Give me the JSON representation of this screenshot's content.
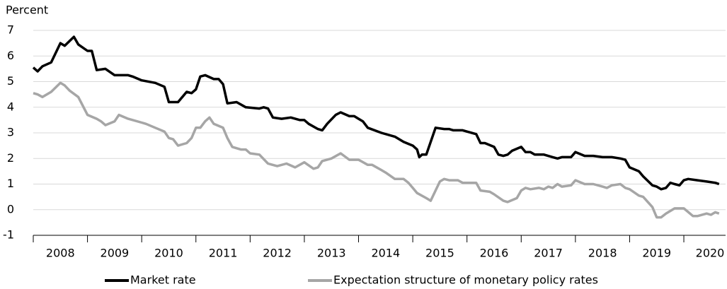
{
  "chart_data": {
    "type": "line",
    "y_label": "Percent",
    "xlim": [
      2008,
      2020.77
    ],
    "ylim": [
      -1,
      7
    ],
    "yticks": [
      -1,
      0,
      1,
      2,
      3,
      4,
      5,
      6,
      7
    ],
    "xticks": [
      2008,
      2009,
      2010,
      2011,
      2012,
      2013,
      2014,
      2015,
      2016,
      2017,
      2018,
      2019,
      2020
    ],
    "grid": true,
    "series": [
      {
        "name": "Market rate",
        "color": "#000000",
        "x": [
          2008.0,
          2008.08,
          2008.17,
          2008.33,
          2008.5,
          2008.58,
          2008.75,
          2008.83,
          2009.0,
          2009.08,
          2009.17,
          2009.33,
          2009.5,
          2009.75,
          2009.83,
          2010.0,
          2010.25,
          2010.42,
          2010.5,
          2010.67,
          2010.83,
          2010.92,
          2011.0,
          2011.08,
          2011.17,
          2011.33,
          2011.42,
          2011.5,
          2011.58,
          2011.75,
          2011.92,
          2012.17,
          2012.25,
          2012.33,
          2012.42,
          2012.58,
          2012.75,
          2012.92,
          2013.0,
          2013.08,
          2013.25,
          2013.33,
          2013.42,
          2013.58,
          2013.67,
          2013.83,
          2013.92,
          2014.0,
          2014.08,
          2014.17,
          2014.42,
          2014.67,
          2014.83,
          2015.0,
          2015.08,
          2015.12,
          2015.17,
          2015.25,
          2015.42,
          2015.58,
          2015.67,
          2015.75,
          2015.92,
          2016.0,
          2016.17,
          2016.25,
          2016.33,
          2016.5,
          2016.58,
          2016.67,
          2016.75,
          2016.83,
          2017.0,
          2017.08,
          2017.17,
          2017.25,
          2017.42,
          2017.58,
          2017.67,
          2017.75,
          2017.92,
          2018.0,
          2018.17,
          2018.33,
          2018.5,
          2018.67,
          2018.83,
          2018.92,
          2019.0,
          2019.17,
          2019.25,
          2019.42,
          2019.5,
          2019.58,
          2019.67,
          2019.75,
          2019.83,
          2019.92,
          2020.0,
          2020.08,
          2020.25,
          2020.42,
          2020.58,
          2020.65
        ],
        "values": [
          5.55,
          5.4,
          5.6,
          5.75,
          6.5,
          6.4,
          6.75,
          6.45,
          6.2,
          6.2,
          5.45,
          5.5,
          5.25,
          5.25,
          5.2,
          5.05,
          4.95,
          4.8,
          4.2,
          4.2,
          4.6,
          4.55,
          4.7,
          5.2,
          5.25,
          5.1,
          5.1,
          4.9,
          4.15,
          4.2,
          4.0,
          3.95,
          4.0,
          3.95,
          3.6,
          3.55,
          3.6,
          3.5,
          3.5,
          3.35,
          3.15,
          3.1,
          3.35,
          3.7,
          3.8,
          3.65,
          3.65,
          3.55,
          3.45,
          3.2,
          3.0,
          2.85,
          2.65,
          2.5,
          2.35,
          2.05,
          2.15,
          2.15,
          3.2,
          3.15,
          3.15,
          3.1,
          3.1,
          3.05,
          2.95,
          2.6,
          2.6,
          2.45,
          2.15,
          2.1,
          2.15,
          2.3,
          2.45,
          2.25,
          2.25,
          2.15,
          2.15,
          2.05,
          2.0,
          2.05,
          2.05,
          2.25,
          2.1,
          2.1,
          2.05,
          2.05,
          2.0,
          1.95,
          1.65,
          1.5,
          1.3,
          0.95,
          0.9,
          0.8,
          0.85,
          1.05,
          1.0,
          0.95,
          1.15,
          1.2,
          1.15,
          1.1,
          1.05,
          1.0
        ]
      },
      {
        "name": "Expectation structure of monetary policy rates",
        "color": "#a6a6a6",
        "x": [
          2008.0,
          2008.08,
          2008.17,
          2008.33,
          2008.5,
          2008.58,
          2008.67,
          2008.83,
          2009.0,
          2009.17,
          2009.25,
          2009.33,
          2009.5,
          2009.58,
          2009.75,
          2010.0,
          2010.08,
          2010.25,
          2010.42,
          2010.5,
          2010.58,
          2010.67,
          2010.83,
          2010.92,
          2011.0,
          2011.08,
          2011.17,
          2011.25,
          2011.33,
          2011.5,
          2011.58,
          2011.67,
          2011.83,
          2011.92,
          2012.0,
          2012.17,
          2012.33,
          2012.5,
          2012.67,
          2012.83,
          2013.0,
          2013.17,
          2013.25,
          2013.33,
          2013.5,
          2013.67,
          2013.83,
          2014.0,
          2014.17,
          2014.25,
          2014.42,
          2014.5,
          2014.67,
          2014.83,
          2014.92,
          2015.0,
          2015.08,
          2015.25,
          2015.33,
          2015.42,
          2015.5,
          2015.58,
          2015.67,
          2015.83,
          2015.92,
          2016.17,
          2016.25,
          2016.42,
          2016.5,
          2016.67,
          2016.75,
          2016.92,
          2017.0,
          2017.08,
          2017.17,
          2017.33,
          2017.42,
          2017.5,
          2017.58,
          2017.67,
          2017.75,
          2017.92,
          2018.0,
          2018.17,
          2018.33,
          2018.5,
          2018.58,
          2018.67,
          2018.83,
          2018.92,
          2019.0,
          2019.17,
          2019.25,
          2019.42,
          2019.5,
          2019.58,
          2019.67,
          2019.83,
          2020.0,
          2020.17,
          2020.25,
          2020.42,
          2020.5,
          2020.58,
          2020.65
        ],
        "values": [
          4.55,
          4.5,
          4.4,
          4.6,
          4.95,
          4.85,
          4.65,
          4.4,
          3.7,
          3.55,
          3.45,
          3.3,
          3.45,
          3.7,
          3.55,
          3.4,
          3.35,
          3.2,
          3.05,
          2.8,
          2.75,
          2.5,
          2.6,
          2.8,
          3.2,
          3.2,
          3.45,
          3.6,
          3.35,
          3.2,
          2.8,
          2.45,
          2.35,
          2.35,
          2.2,
          2.15,
          1.8,
          1.7,
          1.8,
          1.65,
          1.85,
          1.6,
          1.65,
          1.9,
          2.0,
          2.2,
          1.95,
          1.95,
          1.75,
          1.75,
          1.55,
          1.45,
          1.2,
          1.2,
          1.05,
          0.85,
          0.65,
          0.45,
          0.35,
          0.75,
          1.1,
          1.2,
          1.15,
          1.15,
          1.05,
          1.05,
          0.75,
          0.7,
          0.6,
          0.35,
          0.3,
          0.45,
          0.75,
          0.85,
          0.8,
          0.85,
          0.8,
          0.9,
          0.85,
          1.0,
          0.9,
          0.95,
          1.15,
          1.0,
          1.0,
          0.9,
          0.85,
          0.95,
          1.0,
          0.85,
          0.8,
          0.55,
          0.5,
          0.1,
          -0.3,
          -0.3,
          -0.15,
          0.05,
          0.05,
          -0.25,
          -0.25,
          -0.15,
          -0.2,
          -0.1,
          -0.15
        ]
      }
    ]
  }
}
